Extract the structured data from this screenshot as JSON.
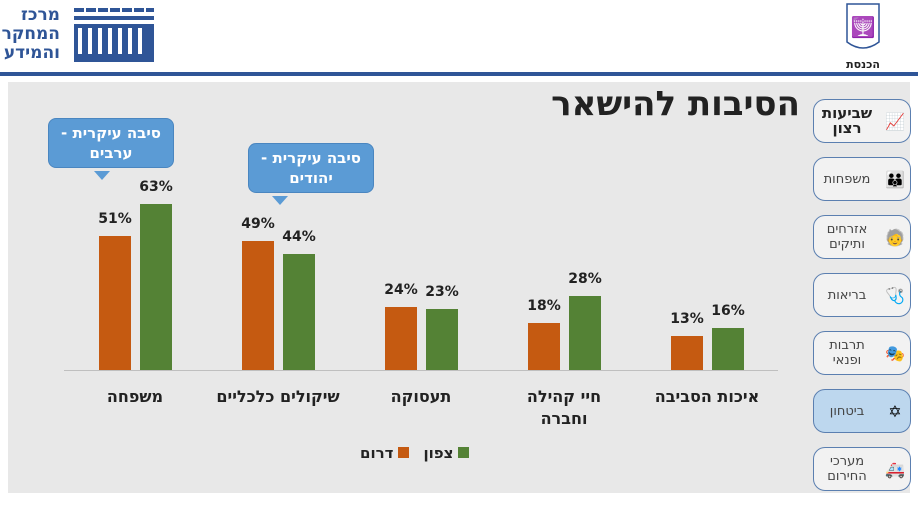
{
  "header": {
    "research_center_logo_text": [
      "מרכז",
      "המחקר",
      "והמידע"
    ],
    "knesset_label": "הכנסת"
  },
  "title": "הסיבות להישאר",
  "nav": [
    {
      "label": "שביעות רצון",
      "icon": "chart-line-icon",
      "active": false,
      "bold": true
    },
    {
      "label": "משפחות",
      "icon": "family-icon",
      "active": false
    },
    {
      "label": "אזרחים ותיקים",
      "icon": "elderly-icon",
      "active": false
    },
    {
      "label": "בריאות",
      "icon": "stethoscope-icon",
      "active": false
    },
    {
      "label": "תרבות ופנאי",
      "icon": "theater-icon",
      "active": false
    },
    {
      "label": "ביטחון",
      "icon": "idf-star-icon",
      "active": true
    },
    {
      "label": "מערכי החירום",
      "icon": "ambulance-icon",
      "active": false
    }
  ],
  "callouts": [
    {
      "text": "סיבה עיקרית - ערבים"
    },
    {
      "text": "סיבה עיקרית - יהודים"
    }
  ],
  "colors": {
    "south": "#c55a11",
    "north": "#548235",
    "accent": "#2f5597"
  },
  "chart_data": {
    "type": "bar",
    "categories": [
      "משפחה",
      "שיקולים כלכליים",
      "תעסוקה",
      "חיי קהילה וחברה",
      "איכות הסביבה"
    ],
    "series": [
      {
        "name": "דרום",
        "values": [
          51,
          49,
          24,
          18,
          13
        ]
      },
      {
        "name": "צפון",
        "values": [
          63,
          44,
          23,
          28,
          16
        ]
      }
    ],
    "value_suffix": "%",
    "ylim": [
      0,
      100
    ],
    "grid": false,
    "legend": "bottom"
  }
}
